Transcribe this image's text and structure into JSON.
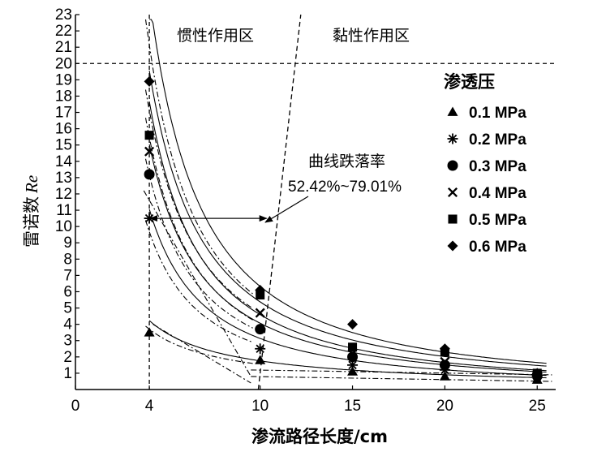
{
  "chart_data": {
    "type": "scatter",
    "title": "",
    "xlabel": "渗流路径长度/cm",
    "ylabel_main": "雷诺数",
    "ylabel_italic": "Re",
    "xlim": [
      0,
      26
    ],
    "ylim": [
      0,
      23
    ],
    "x_ticks": [
      0,
      4,
      10,
      15,
      20,
      25
    ],
    "y_ticks": [
      1,
      2,
      3,
      4,
      5,
      6,
      7,
      8,
      9,
      10,
      11,
      12,
      13,
      14,
      15,
      16,
      17,
      18,
      19,
      20,
      21,
      22,
      23
    ],
    "legend_title": "渗透压",
    "series": [
      {
        "name": "0.1 MPa",
        "marker": "triangle",
        "x": [
          4,
          10,
          15,
          20,
          25
        ],
        "y": [
          3.5,
          1.8,
          1.1,
          0.8,
          0.6
        ]
      },
      {
        "name": "0.2 MPa",
        "marker": "asterisk",
        "x": [
          4,
          10,
          15,
          20,
          25
        ],
        "y": [
          10.5,
          2.5,
          1.5,
          1.2,
          0.8
        ]
      },
      {
        "name": "0.3 MPa",
        "marker": "circle",
        "x": [
          4,
          10,
          15,
          20,
          25
        ],
        "y": [
          13.2,
          3.7,
          2.0,
          1.5,
          0.9
        ]
      },
      {
        "name": "0.4 MPa",
        "marker": "cross",
        "x": [
          4,
          10,
          15,
          20,
          25
        ],
        "y": [
          14.6,
          4.7,
          2.2,
          1.7,
          0.9
        ]
      },
      {
        "name": "0.5 MPa",
        "marker": "square",
        "x": [
          4,
          10,
          15,
          20,
          25
        ],
        "y": [
          15.6,
          5.8,
          2.6,
          2.3,
          1.0
        ]
      },
      {
        "name": "0.6 MPa",
        "marker": "diamond",
        "x": [
          4,
          10,
          15,
          20,
          25
        ],
        "y": [
          18.9,
          6.1,
          4.0,
          2.5,
          1.0
        ]
      }
    ],
    "reference_lines": {
      "hline_y": 20,
      "vline_x": 4
    },
    "annotations": {
      "inertial_zone": "惯性作用区",
      "viscous_zone": "黏性作用区",
      "drop_title": "曲线跌落率",
      "drop_value": "52.42%~79.01%"
    }
  }
}
